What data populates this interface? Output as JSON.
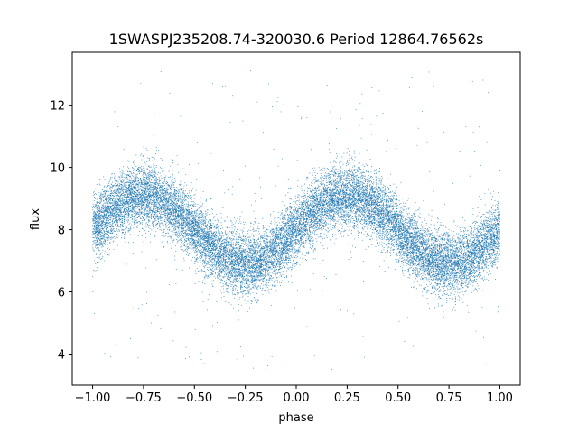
{
  "chart_data": {
    "type": "scatter",
    "title": "1SWASPJ235208.74-320030.6 Period 12864.76562s",
    "xlabel": "phase",
    "ylabel": "flux",
    "xlim": [
      -1.1,
      1.1
    ],
    "ylim": [
      3.0,
      13.7
    ],
    "x_ticks": [
      -1.0,
      -0.75,
      -0.5,
      -0.25,
      0.0,
      0.25,
      0.5,
      0.75,
      1.0
    ],
    "x_tick_labels": [
      "−1.00",
      "−0.75",
      "−0.50",
      "−0.25",
      "0.00",
      "0.25",
      "0.50",
      "0.75",
      "1.00"
    ],
    "y_ticks": [
      4,
      6,
      8,
      10,
      12
    ],
    "y_tick_labels": [
      "4",
      "6",
      "8",
      "10",
      "12"
    ],
    "grid": false,
    "legend": "none",
    "marker_color": "#1f77b4",
    "series": [
      {
        "x_range": [
          -1.0,
          1.0
        ],
        "model": "sinusoid",
        "mean": 8.0,
        "amplitude": 1.1,
        "peak_phases": [
          -0.75,
          0.25
        ],
        "trough_phases": [
          -0.25,
          0.75
        ],
        "scatter_sigma": 0.5,
        "outlier_range": [
          3.5,
          13.2
        ],
        "approx_points": 20000
      }
    ]
  }
}
